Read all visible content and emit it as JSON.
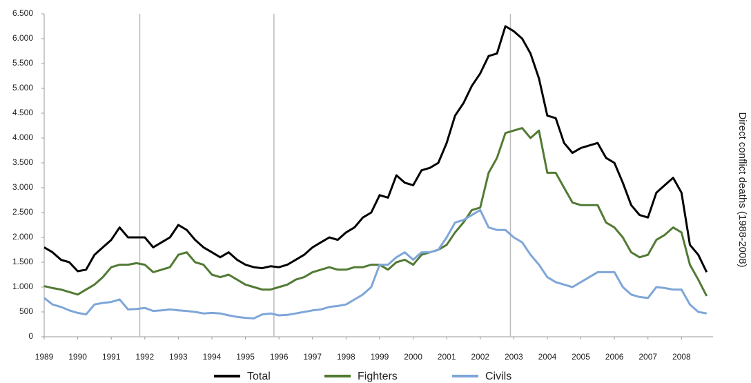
{
  "chart_data": {
    "type": "line",
    "y_label": "Direct conflict deaths  (1988-2008)",
    "x": [
      1989,
      1989.25,
      1989.5,
      1989.75,
      1990,
      1990.25,
      1990.5,
      1990.75,
      1991,
      1991.25,
      1991.5,
      1991.75,
      1992,
      1992.25,
      1992.5,
      1992.75,
      1993,
      1993.25,
      1993.5,
      1993.75,
      1994,
      1994.25,
      1994.5,
      1994.75,
      1995,
      1995.25,
      1995.5,
      1995.75,
      1996,
      1996.25,
      1996.5,
      1996.75,
      1997,
      1997.25,
      1997.5,
      1997.75,
      1998,
      1998.25,
      1998.5,
      1998.75,
      1999,
      1999.25,
      1999.5,
      1999.75,
      2000,
      2000.25,
      2000.5,
      2000.75,
      2001,
      2001.25,
      2001.5,
      2001.75,
      2002,
      2002.25,
      2002.5,
      2002.75,
      2003,
      2003.25,
      2003.5,
      2003.75,
      2004,
      2004.25,
      2004.5,
      2004.75,
      2005,
      2005.25,
      2005.5,
      2005.75,
      2006,
      2006.25,
      2006.5,
      2006.75,
      2007,
      2007.25,
      2007.5,
      2007.75,
      2008,
      2008.25,
      2008.5,
      2008.75
    ],
    "series": [
      {
        "name": "Total",
        "color": "#000000",
        "values": [
          1800,
          1700,
          1550,
          1500,
          1320,
          1350,
          1650,
          1800,
          1950,
          2200,
          2000,
          2000,
          2000,
          1800,
          1900,
          2000,
          2250,
          2150,
          1950,
          1800,
          1700,
          1600,
          1700,
          1550,
          1450,
          1400,
          1380,
          1420,
          1400,
          1450,
          1550,
          1650,
          1800,
          1900,
          2000,
          1950,
          2100,
          2200,
          2400,
          2500,
          2850,
          2800,
          3250,
          3100,
          3050,
          3350,
          3400,
          3500,
          3900,
          4450,
          4700,
          5050,
          5300,
          5650,
          5700,
          6250,
          6150,
          6000,
          5700,
          5200,
          4450,
          4400,
          3900,
          3700,
          3800,
          3850,
          3900,
          3600,
          3500,
          3100,
          2650,
          2450,
          2400,
          2900,
          3050,
          3200,
          2900,
          1850,
          1650,
          1300
        ]
      },
      {
        "name": "Fighters",
        "color": "#527a34",
        "values": [
          1020,
          980,
          950,
          900,
          850,
          950,
          1050,
          1200,
          1400,
          1450,
          1450,
          1480,
          1450,
          1300,
          1350,
          1400,
          1650,
          1700,
          1500,
          1450,
          1250,
          1200,
          1250,
          1150,
          1050,
          1000,
          950,
          950,
          1000,
          1050,
          1150,
          1200,
          1300,
          1350,
          1400,
          1350,
          1350,
          1400,
          1400,
          1450,
          1450,
          1350,
          1500,
          1550,
          1450,
          1650,
          1700,
          1750,
          1850,
          2100,
          2300,
          2550,
          2600,
          3300,
          3600,
          4100,
          4150,
          4200,
          4000,
          4150,
          3300,
          3300,
          3000,
          2700,
          2650,
          2650,
          2650,
          2300,
          2200,
          2000,
          1700,
          1600,
          1650,
          1950,
          2050,
          2200,
          2100,
          1450,
          1150,
          820
        ]
      },
      {
        "name": "Civils",
        "color": "#7ea6d8",
        "values": [
          780,
          650,
          600,
          530,
          480,
          450,
          650,
          680,
          700,
          750,
          550,
          560,
          580,
          520,
          530,
          550,
          530,
          520,
          500,
          470,
          480,
          470,
          430,
          400,
          380,
          370,
          450,
          470,
          430,
          440,
          470,
          500,
          530,
          550,
          600,
          620,
          650,
          750,
          850,
          1000,
          1450,
          1450,
          1600,
          1700,
          1550,
          1700,
          1700,
          1750,
          2000,
          2300,
          2350,
          2450,
          2550,
          2200,
          2150,
          2150,
          2000,
          1900,
          1650,
          1450,
          1200,
          1100,
          1050,
          1000,
          1100,
          1200,
          1300,
          1300,
          1300,
          1000,
          850,
          800,
          780,
          1000,
          980,
          950,
          950,
          650,
          500,
          470
        ]
      }
    ],
    "xlim": [
      1989,
      2008.94
    ],
    "xticks": [
      1989,
      1990,
      1991,
      1992,
      1993,
      1994,
      1995,
      1996,
      1997,
      1998,
      1999,
      2000,
      2001,
      2002,
      2003,
      2004,
      2005,
      2006,
      2007,
      2008
    ],
    "ylim": [
      0,
      6500
    ],
    "yticks": [
      0,
      500,
      {
        "value": 1000,
        "label": "1.000"
      },
      {
        "value": 1500,
        "label": "1.500"
      },
      {
        "value": 2000,
        "label": "2.000"
      },
      {
        "value": 2500,
        "label": "2.500"
      },
      {
        "value": 3000,
        "label": "3.000"
      },
      {
        "value": 3500,
        "label": "3.500"
      },
      {
        "value": 4000,
        "label": "4.000"
      },
      {
        "value": 4500,
        "label": "4.500"
      },
      {
        "value": 5000,
        "label": "5.000"
      },
      {
        "value": 5500,
        "label": "5.500"
      },
      {
        "value": 6000,
        "label": "6.000"
      },
      {
        "value": 6500,
        "label": "6.500"
      }
    ],
    "vlines": [
      1991.85,
      1995.85,
      2002.9
    ],
    "grid": false,
    "legend": "bottom"
  }
}
